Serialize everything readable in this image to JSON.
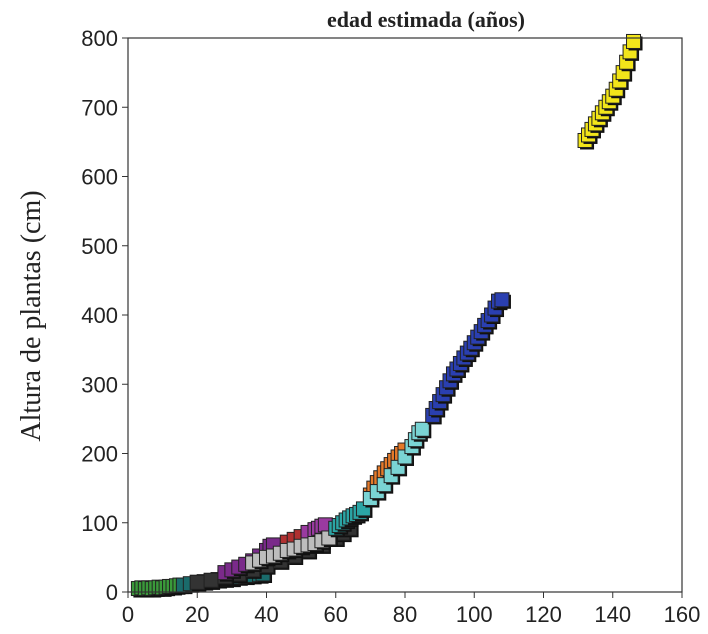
{
  "chart_data": {
    "type": "scatter",
    "title": "edad estimada (años)",
    "xlabel": "",
    "ylabel": "Altura de plantas (cm)",
    "xlim": [
      0,
      160
    ],
    "ylim": [
      0,
      800
    ],
    "xticks": [
      0,
      20,
      40,
      60,
      80,
      100,
      120,
      140,
      160
    ],
    "yticks": [
      0,
      100,
      200,
      300,
      400,
      500,
      600,
      700,
      800
    ],
    "grid": false,
    "legend": "none",
    "series": [
      {
        "color": "#3a9a3a",
        "points": [
          [
            3,
            5
          ],
          [
            4,
            6
          ],
          [
            5,
            5
          ],
          [
            6,
            6
          ],
          [
            7,
            5
          ],
          [
            8,
            6
          ],
          [
            9,
            7
          ],
          [
            10,
            6
          ],
          [
            11,
            7
          ],
          [
            12,
            8
          ],
          [
            13,
            8
          ],
          [
            14,
            9
          ],
          [
            15,
            10
          ],
          [
            16,
            10
          ]
        ]
      },
      {
        "color": "#1a6b6b",
        "points": [
          [
            16,
            10
          ],
          [
            18,
            12
          ],
          [
            20,
            14
          ],
          [
            22,
            15
          ],
          [
            24,
            16
          ],
          [
            26,
            18
          ],
          [
            28,
            19
          ],
          [
            30,
            20
          ],
          [
            32,
            22
          ],
          [
            34,
            23
          ],
          [
            36,
            24
          ],
          [
            38,
            25
          ],
          [
            39,
            26
          ]
        ]
      },
      {
        "color": "#333333",
        "points": [
          [
            20,
            14
          ],
          [
            24,
            17
          ],
          [
            28,
            22
          ],
          [
            32,
            26
          ],
          [
            36,
            32
          ],
          [
            40,
            38
          ],
          [
            44,
            45
          ],
          [
            48,
            52
          ],
          [
            52,
            60
          ],
          [
            56,
            68
          ],
          [
            60,
            78
          ],
          [
            62,
            85
          ],
          [
            64,
            92
          ]
        ]
      },
      {
        "color": "#7a2a8a",
        "points": [
          [
            28,
            28
          ],
          [
            30,
            32
          ],
          [
            32,
            36
          ],
          [
            34,
            40
          ],
          [
            36,
            45
          ],
          [
            38,
            52
          ],
          [
            40,
            60
          ],
          [
            41,
            66
          ],
          [
            42,
            68
          ]
        ]
      },
      {
        "color": "#b03030",
        "points": [
          [
            46,
            72
          ],
          [
            48,
            76
          ],
          [
            50,
            80
          ],
          [
            52,
            84
          ],
          [
            54,
            88
          ],
          [
            56,
            90
          ]
        ]
      },
      {
        "color": "#9a3aa0",
        "points": [
          [
            52,
            86
          ],
          [
            54,
            90
          ],
          [
            55,
            92
          ],
          [
            56,
            95
          ],
          [
            57,
            97
          ]
        ]
      },
      {
        "color": "#bdbdbd",
        "points": [
          [
            36,
            42
          ],
          [
            38,
            46
          ],
          [
            40,
            50
          ],
          [
            42,
            52
          ],
          [
            44,
            56
          ],
          [
            46,
            60
          ],
          [
            48,
            62
          ],
          [
            50,
            66
          ],
          [
            52,
            68
          ],
          [
            54,
            70
          ],
          [
            56,
            74
          ],
          [
            58,
            78
          ]
        ]
      },
      {
        "color": "#2ba5a5",
        "points": [
          [
            60,
            92
          ],
          [
            61,
            96
          ],
          [
            62,
            100
          ],
          [
            63,
            104
          ],
          [
            64,
            107
          ],
          [
            65,
            110
          ],
          [
            66,
            112
          ],
          [
            67,
            115
          ],
          [
            68,
            120
          ]
        ]
      },
      {
        "color": "#e57a2a",
        "points": [
          [
            70,
            140
          ],
          [
            71,
            150
          ],
          [
            72,
            158
          ],
          [
            73,
            165
          ],
          [
            74,
            172
          ],
          [
            75,
            178
          ],
          [
            76,
            184
          ],
          [
            77,
            190
          ],
          [
            78,
            195
          ],
          [
            79,
            200
          ],
          [
            80,
            205
          ]
        ]
      },
      {
        "color": "#7ad4d4",
        "points": [
          [
            70,
            135
          ],
          [
            72,
            145
          ],
          [
            74,
            155
          ],
          [
            76,
            168
          ],
          [
            78,
            180
          ],
          [
            80,
            195
          ],
          [
            82,
            210
          ],
          [
            83,
            220
          ],
          [
            84,
            230
          ],
          [
            85,
            235
          ]
        ]
      },
      {
        "color": "#2a3fb0",
        "points": [
          [
            88,
            255
          ],
          [
            89,
            265
          ],
          [
            90,
            275
          ],
          [
            91,
            285
          ],
          [
            92,
            295
          ],
          [
            93,
            305
          ],
          [
            94,
            315
          ],
          [
            95,
            322
          ],
          [
            96,
            330
          ],
          [
            97,
            338
          ],
          [
            98,
            345
          ],
          [
            99,
            352
          ],
          [
            100,
            360
          ],
          [
            101,
            368
          ],
          [
            102,
            376
          ],
          [
            103,
            385
          ],
          [
            104,
            392
          ],
          [
            105,
            400
          ],
          [
            106,
            410
          ],
          [
            107,
            420
          ],
          [
            108,
            422
          ]
        ]
      },
      {
        "color": "#f2e51a",
        "points": [
          [
            132,
            652
          ],
          [
            133,
            660
          ],
          [
            134,
            668
          ],
          [
            135,
            676
          ],
          [
            136,
            684
          ],
          [
            137,
            692
          ],
          [
            138,
            700
          ],
          [
            139,
            708
          ],
          [
            140,
            716
          ],
          [
            141,
            726
          ],
          [
            142,
            738
          ],
          [
            143,
            750
          ],
          [
            144,
            765
          ],
          [
            145,
            780
          ],
          [
            146,
            795
          ]
        ]
      }
    ]
  }
}
